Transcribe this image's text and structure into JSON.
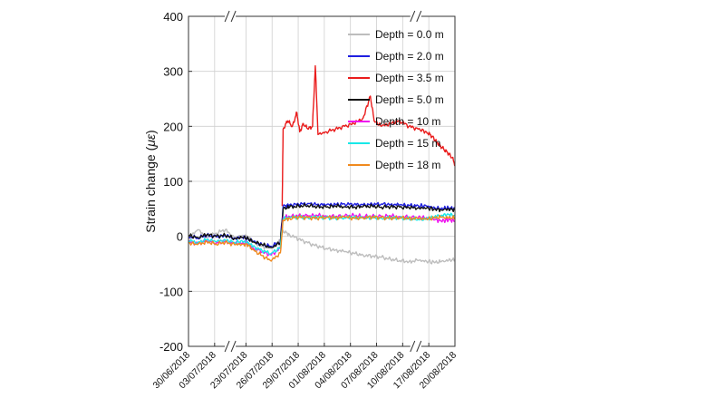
{
  "chart_data": {
    "type": "line",
    "ylabel_prefix": "Strain change (",
    "ylabel_unit": "με",
    "ylabel_suffix": ")",
    "ylim": [
      -200,
      400
    ],
    "yticks": [
      -200,
      -100,
      0,
      100,
      200,
      300,
      400
    ],
    "grid": true,
    "legend_position": "top-right",
    "x_ticks": [
      "30/06/2018",
      "03/07/2018",
      "23/07/2018",
      "26/07/2018",
      "29/07/2018",
      "01/08/2018",
      "04/08/2018",
      "07/08/2018",
      "10/08/2018",
      "17/08/2018",
      "20/08/2018"
    ],
    "axis_breaks": [
      "between 03/07/2018 and 23/07/2018",
      "between 10/08/2018 and 17/08/2018"
    ],
    "series": [
      {
        "name": "Depth = 0.0 m",
        "color": "#bdbdbd",
        "points": [
          [
            0,
            -5
          ],
          [
            1,
            12
          ],
          [
            2,
            -2
          ],
          [
            3,
            6
          ],
          [
            4,
            12
          ],
          [
            5,
            -3
          ],
          [
            5.9,
            2
          ],
          [
            6.5,
            -1
          ],
          [
            7,
            -10
          ],
          [
            8,
            -18
          ],
          [
            9,
            -22
          ],
          [
            10,
            -6
          ],
          [
            10.3,
            10
          ],
          [
            11,
            3
          ],
          [
            12,
            -5
          ],
          [
            13,
            -12
          ],
          [
            14,
            -18
          ],
          [
            15,
            -22
          ],
          [
            16,
            -25
          ],
          [
            17,
            -28
          ],
          [
            18,
            -31
          ],
          [
            19,
            -34
          ],
          [
            20,
            -36
          ],
          [
            21,
            -38
          ],
          [
            22,
            -42
          ],
          [
            23,
            -44
          ],
          [
            24,
            -46
          ],
          [
            25,
            -44
          ],
          [
            25.9,
            -45
          ],
          [
            26.8,
            -48
          ],
          [
            27.5,
            -46
          ],
          [
            28.3,
            -44
          ],
          [
            29,
            -42
          ]
        ]
      },
      {
        "name": "Depth = 2.0 m",
        "color": "#1f1fe0",
        "points": [
          [
            0,
            0
          ],
          [
            1,
            -3
          ],
          [
            2,
            2
          ],
          [
            3,
            -1
          ],
          [
            4,
            1
          ],
          [
            5,
            -3
          ],
          [
            5.9,
            -2
          ],
          [
            6.5,
            -4
          ],
          [
            7,
            -10
          ],
          [
            8,
            -15
          ],
          [
            9,
            -18
          ],
          [
            10,
            -10
          ],
          [
            10.3,
            55
          ],
          [
            11,
            57
          ],
          [
            12,
            58
          ],
          [
            13,
            60
          ],
          [
            14,
            58
          ],
          [
            15,
            57
          ],
          [
            16,
            58
          ],
          [
            17,
            59
          ],
          [
            18,
            58
          ],
          [
            19,
            57
          ],
          [
            20,
            58
          ],
          [
            21,
            59
          ],
          [
            22,
            58
          ],
          [
            23,
            57
          ],
          [
            24,
            56
          ],
          [
            25,
            56
          ],
          [
            25.9,
            55
          ],
          [
            26.8,
            52
          ],
          [
            27.5,
            50
          ],
          [
            28.3,
            52
          ],
          [
            29,
            50
          ]
        ]
      },
      {
        "name": "Depth = 3.5 m",
        "color": "#ea1c1c",
        "points": [
          [
            10.2,
            55
          ],
          [
            10.3,
            195
          ],
          [
            10.8,
            210
          ],
          [
            11.3,
            200
          ],
          [
            11.8,
            225
          ],
          [
            12.1,
            190
          ],
          [
            12.5,
            205
          ],
          [
            13,
            195
          ],
          [
            13.5,
            200
          ],
          [
            13.8,
            310
          ],
          [
            14.1,
            185
          ],
          [
            15,
            190
          ],
          [
            16,
            195
          ],
          [
            17,
            200
          ],
          [
            18,
            205
          ],
          [
            19,
            215
          ],
          [
            19.8,
            255
          ],
          [
            20.2,
            210
          ],
          [
            21,
            200
          ],
          [
            22,
            205
          ],
          [
            23,
            210
          ],
          [
            24,
            200
          ],
          [
            25,
            195
          ],
          [
            25.9,
            190
          ],
          [
            26.5,
            182
          ],
          [
            27,
            172
          ],
          [
            27.4,
            165
          ],
          [
            27.8,
            158
          ],
          [
            28.2,
            152
          ],
          [
            28.7,
            143
          ],
          [
            29,
            130
          ]
        ]
      },
      {
        "name": "Depth = 5.0 m",
        "color": "#111111",
        "points": [
          [
            0,
            2
          ],
          [
            1,
            -2
          ],
          [
            2,
            3
          ],
          [
            3,
            0
          ],
          [
            4,
            2
          ],
          [
            5,
            -4
          ],
          [
            5.9,
            -2
          ],
          [
            6.5,
            -4
          ],
          [
            7,
            -10
          ],
          [
            8,
            -15
          ],
          [
            9,
            -20
          ],
          [
            10,
            -12
          ],
          [
            10.3,
            50
          ],
          [
            11,
            53
          ],
          [
            12,
            55
          ],
          [
            13,
            56
          ],
          [
            14,
            54
          ],
          [
            15,
            53
          ],
          [
            16,
            55
          ],
          [
            17,
            54
          ],
          [
            18,
            53
          ],
          [
            19,
            54
          ],
          [
            20,
            55
          ],
          [
            21,
            53
          ],
          [
            22,
            54
          ],
          [
            23,
            53
          ],
          [
            24,
            52
          ],
          [
            25,
            52
          ],
          [
            25.9,
            51
          ],
          [
            26.8,
            50
          ],
          [
            27.5,
            48
          ],
          [
            28.3,
            50
          ],
          [
            29,
            48
          ]
        ]
      },
      {
        "name": "Depth = 10 m",
        "color": "#ee11ee",
        "points": [
          [
            0,
            -10
          ],
          [
            1,
            -13
          ],
          [
            2,
            -8
          ],
          [
            3,
            -12
          ],
          [
            4,
            -9
          ],
          [
            5,
            -13
          ],
          [
            5.9,
            -12
          ],
          [
            6.5,
            -14
          ],
          [
            7,
            -20
          ],
          [
            8,
            -28
          ],
          [
            9,
            -34
          ],
          [
            10,
            -22
          ],
          [
            10.3,
            35
          ],
          [
            11,
            36
          ],
          [
            12,
            38
          ],
          [
            13,
            37
          ],
          [
            14,
            38
          ],
          [
            15,
            37
          ],
          [
            16,
            36
          ],
          [
            17,
            37
          ],
          [
            18,
            38
          ],
          [
            19,
            36
          ],
          [
            20,
            37
          ],
          [
            21,
            36
          ],
          [
            22,
            37
          ],
          [
            23,
            36
          ],
          [
            24,
            35
          ],
          [
            25,
            34
          ],
          [
            25.9,
            34
          ],
          [
            26.8,
            30
          ],
          [
            27.5,
            28
          ],
          [
            28.3,
            30
          ],
          [
            29,
            28
          ]
        ]
      },
      {
        "name": "Depth = 15 m",
        "color": "#18e8e8",
        "points": [
          [
            0,
            -8
          ],
          [
            1,
            -11
          ],
          [
            2,
            -6
          ],
          [
            3,
            -10
          ],
          [
            4,
            -7
          ],
          [
            5,
            -11
          ],
          [
            5.9,
            -10
          ],
          [
            6.5,
            -12
          ],
          [
            7,
            -18
          ],
          [
            8,
            -26
          ],
          [
            9,
            -31
          ],
          [
            10,
            -20
          ],
          [
            10.3,
            32
          ],
          [
            11,
            34
          ],
          [
            12,
            35
          ],
          [
            13,
            34
          ],
          [
            14,
            35
          ],
          [
            15,
            34
          ],
          [
            16,
            33
          ],
          [
            17,
            34
          ],
          [
            18,
            35
          ],
          [
            19,
            33
          ],
          [
            20,
            34
          ],
          [
            21,
            33
          ],
          [
            22,
            34
          ],
          [
            23,
            33
          ],
          [
            24,
            32
          ],
          [
            25,
            31
          ],
          [
            25.9,
            31
          ],
          [
            26.8,
            36
          ],
          [
            27.5,
            38
          ],
          [
            28.3,
            40
          ],
          [
            29,
            38
          ]
        ]
      },
      {
        "name": "Depth = 18 m",
        "color": "#f08a1e",
        "points": [
          [
            0,
            -12
          ],
          [
            1,
            -15
          ],
          [
            2,
            -10
          ],
          [
            3,
            -14
          ],
          [
            4,
            -11
          ],
          [
            5,
            -15
          ],
          [
            5.9,
            -14
          ],
          [
            6.5,
            -16
          ],
          [
            7,
            -24
          ],
          [
            8,
            -35
          ],
          [
            9,
            -45
          ],
          [
            10,
            -30
          ],
          [
            10.3,
            30
          ],
          [
            11,
            33
          ],
          [
            12,
            35
          ],
          [
            13,
            34
          ],
          [
            14,
            33
          ],
          [
            15,
            35
          ],
          [
            16,
            34
          ],
          [
            17,
            35
          ],
          [
            18,
            33
          ],
          [
            19,
            34
          ],
          [
            20,
            35
          ],
          [
            21,
            34
          ],
          [
            22,
            33
          ],
          [
            23,
            34
          ],
          [
            24,
            33
          ],
          [
            25,
            32
          ],
          [
            25.9,
            32
          ],
          [
            26.8,
            33
          ],
          [
            27.5,
            35
          ],
          [
            28.3,
            33
          ],
          [
            29,
            34
          ]
        ]
      }
    ]
  }
}
